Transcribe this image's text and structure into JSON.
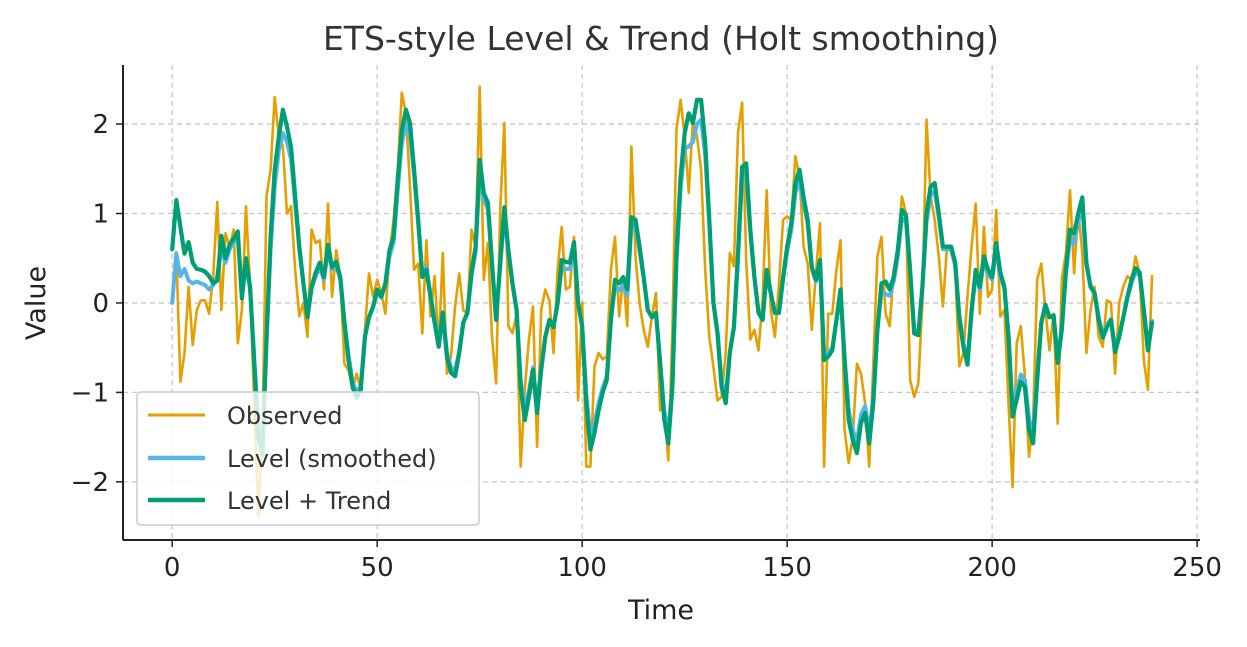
{
  "chart_data": {
    "type": "line",
    "title": "ETS-style Level & Trend (Holt smoothing)",
    "xlabel": "Time",
    "ylabel": "Value",
    "xlim": [
      -12,
      250.7
    ],
    "ylim": [
      -2.65,
      2.66
    ],
    "xticks": [
      0,
      50,
      100,
      150,
      200,
      250
    ],
    "yticks": [
      -2,
      -1,
      0,
      1,
      2
    ],
    "xtick_labels": [
      "0",
      "50",
      "100",
      "150",
      "200",
      "250"
    ],
    "ytick_labels": [
      "−2",
      "−1",
      "0",
      "1",
      "2"
    ],
    "grid": true,
    "legend_placement": "lower-left",
    "series": [
      {
        "name": "Observed",
        "color": "#E69F00",
        "values": [
          0,
          0.57,
          -0.88,
          -0.56,
          0.18,
          -0.47,
          -0.08,
          0.03,
          0.03,
          -0.12,
          0.3,
          1.13,
          -0.08,
          0.78,
          0.63,
          0.82,
          -0.45,
          -0.08,
          1.08,
          0.18,
          -1.12,
          -2.39,
          -1.5,
          1.19,
          1.49,
          2.3,
          1.86,
          1.75,
          1.0,
          1.08,
          0.37,
          -0.15,
          0,
          -0.38,
          0.82,
          0.67,
          0.7,
          0.15,
          1.11,
          0.07,
          0.59,
          0.3,
          -0.68,
          -0.75,
          -0.97,
          -0.79,
          -0.97,
          -0.3,
          0.33,
          0.07,
          0.26,
          0.11,
          -0.12,
          0.56,
          0.93,
          1.49,
          2.35,
          2.12,
          1.3,
          0.37,
          0.44,
          -0.34,
          0.7,
          -0.15,
          0.3,
          -0.49,
          0.56,
          -0.79,
          -0.6,
          -0.04,
          0.33,
          -0.08,
          -0.12,
          0.82,
          0.63,
          2.42,
          0.26,
          0.67,
          -0.38,
          -0.9,
          1.04,
          2.01,
          -0.26,
          -0.34,
          -0.12,
          -1.83,
          -0.97,
          -0.41,
          -0.04,
          -1.61,
          -0.08,
          0.15,
          0.03,
          -0.56,
          0.37,
          0.85,
          0.15,
          0.18,
          0.74,
          -1.09,
          0,
          -1.83,
          -1.83,
          -0.71,
          -0.56,
          -0.63,
          -0.6,
          0.37,
          0.74,
          -0.15,
          0.3,
          -0.26,
          1.75,
          0.52,
          0,
          -0.3,
          -0.49,
          -0.15,
          0.11,
          -1.2,
          -1.16,
          -1.76,
          -0.3,
          1.94,
          2.27,
          1.86,
          1.23,
          2.05,
          1.86,
          1.49,
          0.37,
          -0.38,
          -0.71,
          -1.09,
          -1.05,
          -0.56,
          0.56,
          0.41,
          1.9,
          2.24,
          0.48,
          -0.41,
          -0.3,
          -0.53,
          0.03,
          1.26,
          -0.08,
          -0.38,
          0.22,
          0.93,
          0.97,
          0.93,
          1.64,
          1.41,
          0.63,
          0.44,
          -0.3,
          0.33,
          0.89,
          -1.83,
          -0.12,
          -0.12,
          0.37,
          0.7,
          -1.42,
          -1.79,
          -1.5,
          -0.68,
          -0.79,
          -1.12,
          -1.83,
          -0.68,
          0.52,
          0.74,
          -0.12,
          -0.26,
          0.37,
          0.59,
          1.19,
          1.0,
          -0.86,
          -1.05,
          -0.9,
          0,
          2.05,
          1.19,
          0.93,
          0.52,
          -0.04,
          0.63,
          0.63,
          0.37,
          -0.71,
          -0.56,
          0.07,
          0.63,
          1.11,
          -0.12,
          0.85,
          0.07,
          0.15,
          1.04,
          -0.15,
          -0.08,
          -1.12,
          -2.06,
          -0.45,
          -0.26,
          -0.82,
          -1.72,
          -1.31,
          0.26,
          0.44,
          -0.08,
          -0.53,
          -0.12,
          -1.35,
          0.26,
          0.56,
          1.26,
          0.33,
          1.04,
          0.56,
          -0.56,
          -0.08,
          0.18,
          -0.38,
          -0.49,
          0.03,
          0,
          -0.79,
          0,
          0.18,
          0.3,
          0.26,
          0.52,
          0.33,
          -0.64,
          -0.97,
          0.3
        ]
      },
      {
        "name": "Level (smoothed)",
        "color": "#56B4E9",
        "values": [
          0,
          0.55,
          0.3,
          0.38,
          0.25,
          0.22,
          0.24,
          0.22,
          0.2,
          0.15,
          0.2,
          0.3,
          0.6,
          0.45,
          0.6,
          0.68,
          0.72,
          0.1,
          0.42,
          0.15,
          -0.6,
          -1.35,
          -1.6,
          -0.45,
          0.6,
          1.3,
          1.7,
          1.9,
          1.8,
          1.6,
          1.1,
          0.6,
          0.22,
          -0.12,
          0.16,
          0.3,
          0.4,
          0.26,
          0.58,
          0.38,
          0.42,
          0.26,
          -0.2,
          -0.58,
          -0.88,
          -1.0,
          -0.92,
          -0.38,
          -0.16,
          -0.05,
          0.12,
          0.06,
          0.2,
          0.52,
          0.68,
          1.25,
          1.78,
          2.0,
          1.88,
          1.42,
          0.88,
          0.32,
          0.4,
          0.1,
          -0.18,
          -0.44,
          -0.1,
          -0.55,
          -0.72,
          -0.76,
          -0.54,
          -0.22,
          -0.12,
          0.3,
          0.57,
          1.45,
          1.15,
          1.05,
          0.42,
          -0.16,
          0.4,
          0.98,
          0.56,
          0.2,
          -0.08,
          -0.86,
          -1.2,
          -0.98,
          -0.72,
          -1.13,
          -0.72,
          -0.38,
          -0.2,
          -0.26,
          -0.02,
          0.4,
          0.38,
          0.38,
          0.62,
          0,
          -0.25,
          -1.02,
          -1.5,
          -1.35,
          -1.12,
          -0.95,
          -0.82,
          -0.2,
          0.18,
          0.14,
          0.2,
          0.08,
          0.85,
          0.85,
          0.58,
          0.27,
          -0.08,
          -0.16,
          -0.12,
          -0.63,
          -1.2,
          -1.45,
          -0.9,
          0.45,
          1.28,
          1.72,
          1.75,
          1.8,
          2.0,
          2.05,
          1.65,
          0.88,
          0.02,
          -0.32,
          -0.88,
          -1.05,
          -0.55,
          -0.28,
          0.48,
          1.4,
          1.45,
          0.78,
          0.28,
          -0.1,
          -0.18,
          0.32,
          0.1,
          -0.1,
          -0.1,
          0.26,
          0.58,
          0.82,
          1.22,
          1.38,
          1.1,
          0.88,
          0.38,
          0.24,
          0.42,
          -0.58,
          -0.56,
          -0.5,
          -0.2,
          0.1,
          -0.6,
          -1.2,
          -1.42,
          -1.55,
          -1.25,
          -1.15,
          -1.45,
          -1.05,
          -0.3,
          0.12,
          0.1,
          0.08,
          0.24,
          0.52,
          0.95,
          0.9,
          0.35,
          -0.3,
          -0.34,
          0.15,
          0.9,
          1.2,
          1.25,
          0.95,
          0.6,
          0.6,
          0.6,
          0.42,
          -0.14,
          -0.45,
          -0.64,
          -0.1,
          0.3,
          0.15,
          0.46,
          0.32,
          0.26,
          0.6,
          0.3,
          0.16,
          -0.34,
          -1.15,
          -0.98,
          -0.8,
          -0.86,
          -1.3,
          -1.45,
          -0.8,
          -0.22,
          -0.04,
          -0.16,
          -0.14,
          -0.6,
          -0.28,
          0.32,
          0.72,
          0.66,
          0.9,
          1.08,
          0.42,
          0.2,
          0.1,
          -0.16,
          -0.35,
          -0.25,
          -0.18,
          -0.5,
          -0.36,
          -0.16,
          0.05,
          0.22,
          0.35,
          0.3,
          -0.06,
          -0.48,
          -0.2
        ]
      },
      {
        "name": "Level + Trend",
        "color": "#009E73",
        "values": [
          0.6,
          1.15,
          0.85,
          0.55,
          0.68,
          0.45,
          0.38,
          0.37,
          0.35,
          0.3,
          0.22,
          0.25,
          0.75,
          0.5,
          0.65,
          0.72,
          0.8,
          0.05,
          0.5,
          0.18,
          -0.67,
          -1.5,
          -1.7,
          -0.4,
          0.74,
          1.49,
          1.86,
          2.16,
          1.97,
          1.74,
          1.18,
          0.63,
          0.22,
          -0.16,
          0.18,
          0.34,
          0.45,
          0.29,
          0.65,
          0.4,
          0.46,
          0.29,
          -0.22,
          -0.64,
          -0.94,
          -1.06,
          -0.97,
          -0.38,
          -0.16,
          -0.04,
          0.15,
          0.07,
          0.22,
          0.59,
          0.74,
          1.37,
          1.93,
          2.16,
          2.01,
          1.49,
          0.93,
          0.29,
          0.37,
          0.07,
          -0.22,
          -0.49,
          -0.11,
          -0.6,
          -0.78,
          -0.82,
          -0.56,
          -0.22,
          -0.11,
          0.34,
          0.63,
          1.6,
          1.23,
          1.12,
          0.45,
          -0.19,
          0.45,
          1.07,
          0.59,
          0.22,
          -0.08,
          -0.94,
          -1.31,
          -1.05,
          -0.75,
          -1.23,
          -0.75,
          -0.38,
          -0.19,
          -0.27,
          0,
          0.48,
          0.46,
          0.45,
          0.68,
          0,
          -0.27,
          -1.12,
          -1.64,
          -1.45,
          -1.2,
          -1.0,
          -0.86,
          -0.19,
          0.26,
          0.22,
          0.29,
          0.15,
          0.96,
          0.93,
          0.63,
          0.29,
          -0.08,
          -0.16,
          -0.11,
          -0.67,
          -1.3,
          -1.57,
          -0.94,
          0.55,
          1.41,
          1.9,
          2.12,
          2.01,
          2.27,
          2.27,
          1.79,
          0.93,
          0,
          -0.34,
          -0.94,
          -1.12,
          -0.56,
          -0.27,
          0.55,
          1.52,
          1.56,
          0.82,
          0.29,
          -0.11,
          -0.19,
          0.37,
          0.11,
          -0.11,
          -0.11,
          0.29,
          0.63,
          0.89,
          1.34,
          1.49,
          1.18,
          0.93,
          0.4,
          0.26,
          0.48,
          -0.64,
          -0.6,
          -0.53,
          -0.19,
          0.15,
          -0.64,
          -1.31,
          -1.53,
          -1.68,
          -1.34,
          -1.23,
          -1.57,
          -1.12,
          -0.3,
          0.22,
          0.24,
          0.15,
          0.29,
          0.59,
          1.04,
          0.98,
          0.37,
          -0.34,
          -0.36,
          0.18,
          1.0,
          1.3,
          1.34,
          1.0,
          0.63,
          0.63,
          0.63,
          0.45,
          -0.16,
          -0.49,
          -0.69,
          -0.08,
          0.37,
          0.18,
          0.52,
          0.37,
          0.29,
          0.67,
          0.34,
          0.18,
          -0.38,
          -1.27,
          -1.08,
          -0.88,
          -0.94,
          -1.42,
          -1.57,
          -0.86,
          -0.22,
          -0.02,
          -0.16,
          -0.14,
          -0.67,
          -0.3,
          0.37,
          0.82,
          0.78,
          1.0,
          1.18,
          0.45,
          0.18,
          0.11,
          -0.19,
          -0.39,
          -0.27,
          -0.19,
          -0.55,
          -0.38,
          -0.16,
          0.07,
          0.26,
          0.39,
          0.34,
          -0.08,
          -0.53,
          -0.22
        ]
      }
    ]
  }
}
